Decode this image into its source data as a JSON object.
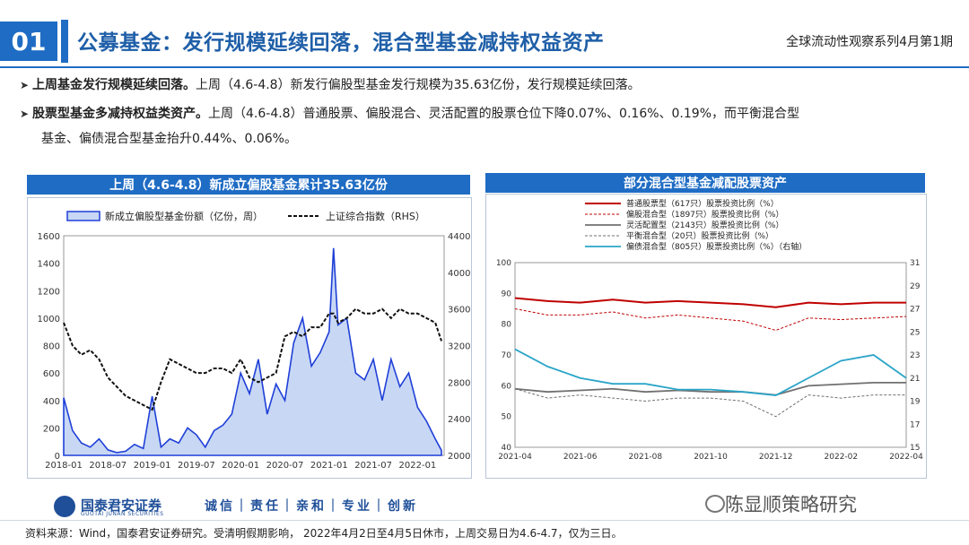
{
  "header": {
    "number": "01",
    "title": "公募基金：发行规模延续回落，混合型基金减持权益资产",
    "series": "全球流动性观察系列4月第1期"
  },
  "bullets": [
    {
      "bold": "上周基金发行规模延续回落。",
      "text": "上周（4.6-4.8）新发行偏股型基金发行规模为35.63亿份，发行规模延续回落。"
    },
    {
      "bold": "股票型基金多减持权益类资产。",
      "text": "上周（4.6-4.8）普通股票、偏股混合、灵活配置的股票仓位下降0.07%、0.16%、0.19%，而平衡混合型",
      "text2": "基金、偏债混合型基金抬升0.44%、0.06%。"
    }
  ],
  "chart_data": [
    {
      "type": "bar",
      "title": "上周（4.6-4.8）新成立偏股基金累计35.63亿份",
      "legend": [
        "新成立偏股型基金份额（亿份，周）",
        "上证综合指数（RHS）"
      ],
      "legend_position": "top",
      "x_ticks": [
        "2018-01",
        "2018-07",
        "2019-01",
        "2019-07",
        "2020-01",
        "2020-07",
        "2021-01",
        "2021-07",
        "2022-01"
      ],
      "ylim": [
        0,
        1600
      ],
      "y_ticks": [
        0,
        200,
        400,
        600,
        800,
        1000,
        1200,
        1400,
        1600
      ],
      "y2lim": [
        2000,
        4400
      ],
      "y2_ticks": [
        2000,
        2400,
        2800,
        3200,
        3600,
        4000,
        4400
      ],
      "x": [
        2018.0,
        2018.1,
        2018.2,
        2018.3,
        2018.4,
        2018.5,
        2018.6,
        2018.7,
        2018.8,
        2018.9,
        2019.0,
        2019.1,
        2019.2,
        2019.3,
        2019.4,
        2019.5,
        2019.6,
        2019.7,
        2019.8,
        2019.9,
        2020.0,
        2020.1,
        2020.2,
        2020.3,
        2020.4,
        2020.5,
        2020.6,
        2020.7,
        2020.8,
        2020.9,
        2021.0,
        2021.05,
        2021.1,
        2021.2,
        2021.3,
        2021.4,
        2021.5,
        2021.6,
        2021.7,
        2021.8,
        2021.9,
        2022.0,
        2022.1,
        2022.2,
        2022.27
      ],
      "series": [
        {
          "name": "新成立偏股型基金份额（亿份，周）",
          "values": [
            420,
            180,
            90,
            60,
            120,
            40,
            20,
            30,
            80,
            50,
            430,
            60,
            120,
            90,
            200,
            150,
            60,
            180,
            220,
            300,
            600,
            450,
            700,
            300,
            520,
            400,
            820,
            1000,
            650,
            750,
            900,
            1510,
            950,
            1000,
            600,
            550,
            700,
            400,
            700,
            500,
            600,
            350,
            250,
            120,
            36
          ]
        },
        {
          "name": "上证综合指数（RHS）",
          "values": [
            3450,
            3200,
            3100,
            3150,
            3050,
            2850,
            2750,
            2650,
            2600,
            2550,
            2500,
            2800,
            3050,
            3000,
            2950,
            2900,
            2900,
            2950,
            2950,
            2900,
            3050,
            2850,
            2800,
            2850,
            2900,
            3300,
            3350,
            3300,
            3400,
            3400,
            3550,
            3550,
            3450,
            3500,
            3600,
            3550,
            3550,
            3600,
            3500,
            3600,
            3550,
            3550,
            3500,
            3450,
            3250
          ]
        }
      ]
    },
    {
      "type": "line",
      "title": "部分混合型基金减配股票资产",
      "legend": [
        "普通股票型（617只）股票投资比例（%）",
        "偏股混合型（1897只）股票投资比例（%）",
        "灵活配置型（2143只）股票投资比例（%）",
        "平衡混合型（20只）股票投资比例（%）",
        "偏债混合型（805只）股票投资比例（%）（右轴）"
      ],
      "legend_position": "top",
      "x_ticks": [
        "2021-04",
        "2021-06",
        "2021-08",
        "2021-10",
        "2021-12",
        "2022-02",
        "2022-04"
      ],
      "ylim": [
        40,
        100
      ],
      "y_ticks": [
        40,
        50,
        60,
        70,
        80,
        90,
        100
      ],
      "y2lim": [
        15,
        31
      ],
      "y2_ticks": [
        15,
        17,
        19,
        21,
        23,
        25,
        27,
        29,
        31
      ],
      "x": [
        0,
        1,
        2,
        3,
        4,
        5,
        6,
        7,
        8,
        9,
        10,
        11,
        12
      ],
      "series": [
        {
          "name": "普通股票型（617只）股票投资比例（%）",
          "values": [
            88.5,
            87.5,
            87,
            88,
            87,
            87.5,
            87,
            86.5,
            85.5,
            87,
            86.5,
            87,
            87
          ]
        },
        {
          "name": "偏股混合型（1897只）股票投资比例（%）",
          "values": [
            85,
            83,
            83,
            84,
            82,
            83,
            82,
            81,
            78,
            82,
            81.5,
            82,
            82.5
          ]
        },
        {
          "name": "灵活配置型（2143只）股票投资比例（%）",
          "values": [
            59,
            58,
            58.5,
            59,
            58,
            58.5,
            58,
            58,
            57,
            60,
            60.5,
            61,
            61
          ]
        },
        {
          "name": "平衡混合型（20只）股票投资比例（%）",
          "values": [
            59,
            56,
            57,
            56,
            55,
            56,
            56,
            55,
            50,
            57,
            56,
            57,
            57
          ]
        },
        {
          "name": "偏债混合型（805只）股票投资比例（%）（右轴）",
          "values": [
            23.5,
            22,
            21,
            20.5,
            20.5,
            20,
            20,
            19.8,
            19.5,
            21,
            22.5,
            23,
            21
          ]
        }
      ]
    }
  ],
  "footer": {
    "logo": "国泰君安证券",
    "logo_sub": "GUOTAI JUNAN SECURITIES",
    "slogan": "诚信｜责任｜亲和｜专业｜创新",
    "wechat": "陈显顺策略研究",
    "source": "资料来源：Wind，国泰君安证券研究。受清明假期影响， 2022年4月2日至4月5日休市，上周交易日为4.6-4.7，仅为三日。"
  },
  "colors": {
    "brand": "#1f6cc4",
    "bar": "#1f3fd8",
    "red": "#c00000",
    "gray": "#707070",
    "teal": "#2aa5c8"
  }
}
